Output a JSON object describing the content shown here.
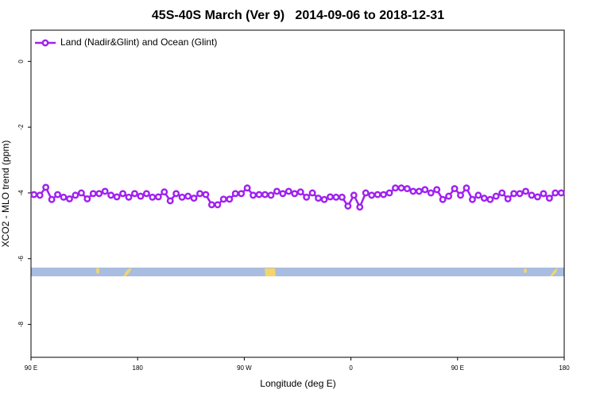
{
  "chart_data": {
    "type": "line",
    "title": "45S-40S March (Ver 9)   2014-09-06 to 2018-12-31",
    "xlabel": "Longitude (deg E)",
    "ylabel": "XCO2 - MLO trend (ppm)",
    "xlim": [
      90,
      540
    ],
    "ylim": [
      -9,
      0.95
    ],
    "xticks": [
      {
        "value": 90,
        "label": "90 E"
      },
      180,
      {
        "value": 270,
        "label": "90 W"
      },
      {
        "value": 360,
        "label": "0"
      },
      {
        "value": 450,
        "label": "90 E"
      },
      {
        "value": 540,
        "label": "180"
      }
    ],
    "yticks": [
      0,
      -2,
      -4,
      -6,
      -8
    ],
    "legend": "upper left",
    "x": [
      92.5,
      97.5,
      102.5,
      107.5,
      112.5,
      117.5,
      122.5,
      127.5,
      132.5,
      137.5,
      142.5,
      147.5,
      152.5,
      157.5,
      162.5,
      167.5,
      172.5,
      177.5,
      182.5,
      187.5,
      192.5,
      197.5,
      202.5,
      207.5,
      212.5,
      217.5,
      222.5,
      227.5,
      232.5,
      237.5,
      242.5,
      247.5,
      252.5,
      257.5,
      262.5,
      267.5,
      272.5,
      277.5,
      282.5,
      287.5,
      292.5,
      297.5,
      302.5,
      307.5,
      312.5,
      317.5,
      322.5,
      327.5,
      332.5,
      337.5,
      342.5,
      347.5,
      352.5,
      357.5,
      362.5,
      367.5,
      372.5,
      377.5,
      382.5,
      387.5,
      392.5,
      397.5,
      402.5,
      407.5,
      412.5,
      417.5,
      422.5,
      427.5,
      432.5,
      437.5,
      442.5,
      447.5,
      452.5,
      457.5,
      462.5,
      467.5,
      472.5,
      477.5,
      482.5,
      487.5,
      492.5,
      497.5,
      502.5,
      507.5,
      512.5,
      517.5,
      522.5,
      527.5,
      532.5,
      537.5
    ],
    "series": [
      {
        "name": "Land (Nadir&Glint) and Ocean (Glint)",
        "color": "#a020f0",
        "values": [
          -4.05,
          -4.07,
          -3.83,
          -4.2,
          -4.05,
          -4.13,
          -4.18,
          -4.07,
          -4.0,
          -4.18,
          -4.02,
          -4.02,
          -3.95,
          -4.07,
          -4.12,
          -4.02,
          -4.13,
          -4.02,
          -4.1,
          -4.02,
          -4.13,
          -4.12,
          -3.97,
          -4.24,
          -4.02,
          -4.13,
          -4.1,
          -4.16,
          -4.02,
          -4.05,
          -4.36,
          -4.36,
          -4.19,
          -4.19,
          -4.02,
          -4.02,
          -3.85,
          -4.07,
          -4.05,
          -4.05,
          -4.07,
          -3.95,
          -4.02,
          -3.95,
          -4.02,
          -3.97,
          -4.13,
          -4.0,
          -4.16,
          -4.2,
          -4.12,
          -4.13,
          -4.13,
          -4.4,
          -4.07,
          -4.43,
          -4.0,
          -4.07,
          -4.05,
          -4.05,
          -4.0,
          -3.85,
          -3.85,
          -3.87,
          -3.95,
          -3.95,
          -3.9,
          -4.0,
          -3.9,
          -4.2,
          -4.1,
          -3.87,
          -4.07,
          -3.85,
          -4.2,
          -4.07,
          -4.16,
          -4.2,
          -4.1,
          -4.0,
          -4.18,
          -4.02,
          -4.02,
          -3.95,
          -4.07,
          -4.12,
          -4.02,
          -4.16,
          -4.0,
          -4.0
        ]
      }
    ]
  }
}
